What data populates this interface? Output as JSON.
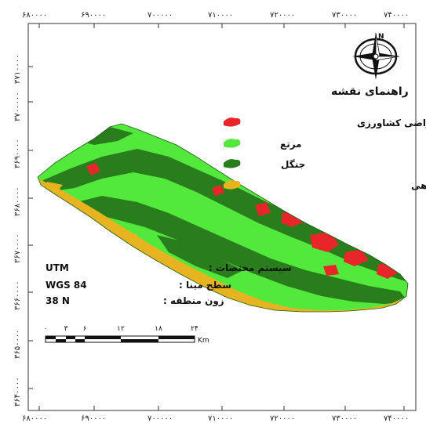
{
  "x_ticks_top": [
    "۶۸۰۰۰۰",
    "۶۹۰۰۰۰",
    "۷۰۰۰۰۰",
    "۷۱۰۰۰۰",
    "۷۲۰۰۰۰",
    "۷۳۰۰۰۰",
    "۷۴۰۰۰۰"
  ],
  "x_ticks_bottom": [
    "۶۸۰۰۰۰",
    "۶۹۰۰۰۰",
    "۷۰۰۰۰۰",
    "۷۱۰۰۰۰",
    "۷۲۰۰۰۰",
    "۷۳۰۰۰۰",
    "۷۴۰۰۰۰"
  ],
  "y_ticks": [
    "۳۷۱۰۰۰۰",
    "۳۷۰۰۰۰۰",
    "۳۶۹۰۰۰۰",
    "۳۶۸۰۰۰۰",
    "۳۶۷۰۰۰۰",
    "۳۶۶۰۰۰۰",
    "۳۶۵۰۰۰۰",
    "۳۶۴۰۰۰۰"
  ],
  "north_arrow": {
    "label": "N",
    "icon": "north-arrow-icon"
  },
  "legend": {
    "title": "راهنمای نقشه",
    "items": [
      {
        "label": "اراضی کشاورزی",
        "color": "#e8262a"
      },
      {
        "label": "مرتع",
        "color": "#52e83c"
      },
      {
        "label": "جنگل",
        "color": "#2a7d1c"
      },
      {
        "label": "مناطق فاقد پوشش گیاهی",
        "color": "#e8b320"
      }
    ]
  },
  "map_info": [
    {
      "label": "سیستم مختصات :",
      "value": "UTM"
    },
    {
      "label": "سطح مبنا :",
      "value": "WGS 84"
    },
    {
      "label": "زون منطقه :",
      "value": "38 N"
    }
  ],
  "scale_bar": {
    "ticks": [
      "۰",
      "۳",
      "۶",
      "۱۲",
      "۱۸",
      "۲۴"
    ],
    "unit": "Km"
  },
  "colors": {
    "agriculture": "#e8262a",
    "rangeland": "#52e83c",
    "forest": "#2a7d1c",
    "barren": "#e8b320",
    "frame": "#333333"
  }
}
